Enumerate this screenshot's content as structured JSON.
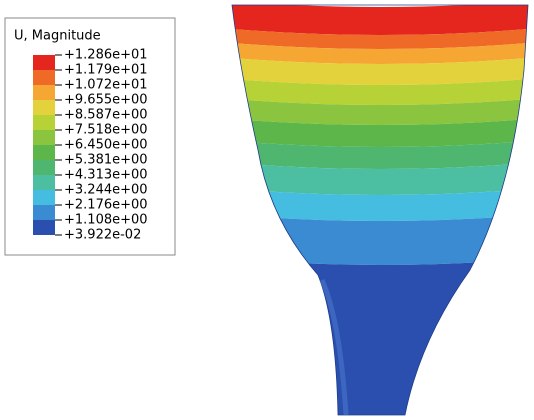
{
  "legend": {
    "title": "U, Magnitude",
    "labels": [
      "+1.286e+01",
      "+1.179e+01",
      "+1.072e+01",
      "+9.655e+00",
      "+8.587e+00",
      "+7.518e+00",
      "+6.450e+00",
      "+5.381e+00",
      "+4.313e+00",
      "+3.244e+00",
      "+2.176e+00",
      "+1.108e+00",
      "+3.922e-02"
    ],
    "colors": [
      "#e5261f",
      "#ef6a26",
      "#f6a733",
      "#e4d23c",
      "#b7d236",
      "#8bc540",
      "#5db64a",
      "#4fb66f",
      "#4cbfa3",
      "#45bde0",
      "#3b8bd3",
      "#2a4fae"
    ]
  }
}
